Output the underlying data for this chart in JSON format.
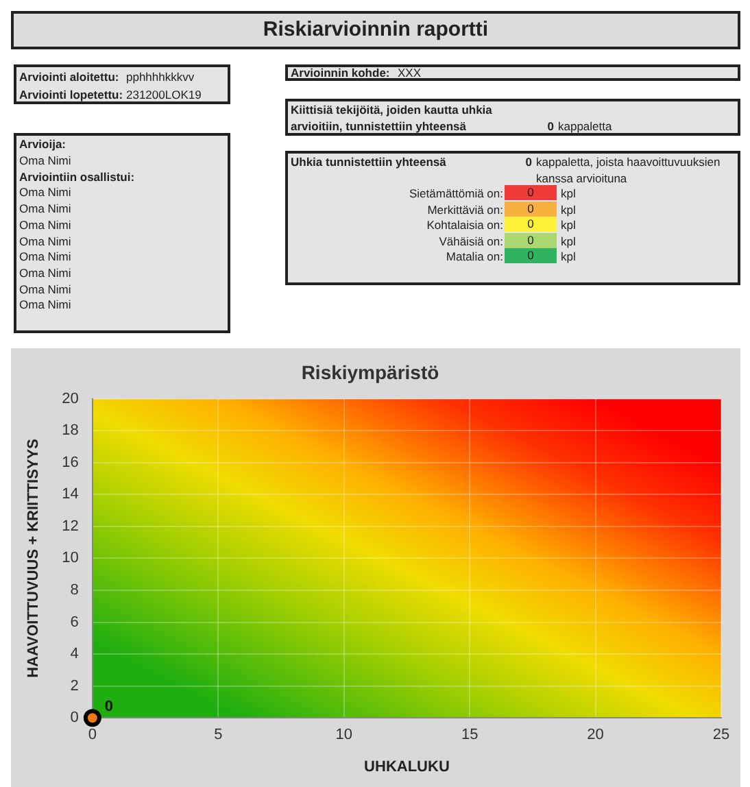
{
  "chart_data": [
    {
      "type": "other",
      "title": "Riskiarvioinnin raportti",
      "annotations": [
        "Arviointi aloitettu:",
        "pphhhhkkkvv",
        "Arviointi lopetettu:",
        "231200LOK19",
        "Arvioinnin kohde:",
        "XXX",
        "Kiittisiä tekijöitä, joiden kautta uhkia",
        "arvioitiin, tunnistettiin yhteensä",
        "0",
        "kappaletta",
        "Arvioija:",
        "Oma Nimi",
        "Arviointiin osallistui:",
        "Oma Nimi",
        "Oma Nimi",
        "Oma Nimi",
        "Oma Nimi",
        "Oma Nimi",
        "Oma Nimi",
        "Oma Nimi",
        "Oma Nimi",
        "Uhkia tunnistettiin yhteensä",
        "0",
        "kappaletta, joista haavoittuvuuksien",
        "kanssa arvioituna",
        "Sietämättömiä on:",
        "0",
        "kpl",
        "Merkittäviä on:",
        "0",
        "kpl",
        "Kohtalaisia on:",
        "0",
        "kpl",
        "Vähäisiä on:",
        "0",
        "kpl",
        "Matalia on:",
        "0",
        "kpl"
      ],
      "colors": [
        "#f03a3a",
        "#f8b040",
        "#fff23a",
        "#a9d870",
        "#2fb35e"
      ]
    },
    {
      "type": "scatter",
      "title": "Riskiympäristö",
      "xlabel": "UHKALUKU",
      "ylabel": "HAAVOITTUVUUS + KRIITTISYYS",
      "x": [
        0
      ],
      "values": [
        0
      ],
      "color": "#f07a10",
      "marker": "circle",
      "data_labels": true,
      "xlim": [
        0,
        25
      ],
      "xticks": [
        0,
        5,
        10,
        15,
        20,
        25
      ],
      "ylim": [
        0,
        20
      ],
      "yticks": [
        0,
        2,
        4,
        6,
        8,
        10,
        12,
        14,
        16,
        18,
        20
      ],
      "grid": true,
      "legend": false
    }
  ]
}
